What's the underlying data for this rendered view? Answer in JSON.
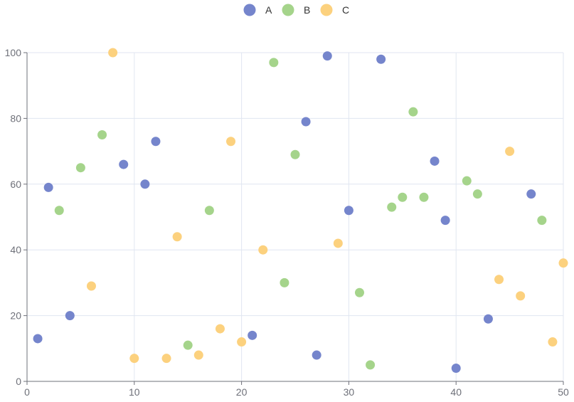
{
  "chart_data": {
    "type": "scatter",
    "title": "",
    "xlabel": "",
    "ylabel": "",
    "xlim": [
      0,
      50
    ],
    "ylim": [
      0,
      100
    ],
    "x_ticks": [
      "0",
      "10",
      "20",
      "30",
      "40",
      "50"
    ],
    "y_ticks": [
      "0",
      "20",
      "40",
      "60",
      "80",
      "100"
    ],
    "grid": true,
    "legend_position": "top-center",
    "series": [
      {
        "name": "A",
        "color": "#7585cc",
        "points": [
          [
            1,
            13
          ],
          [
            2,
            59
          ],
          [
            4,
            20
          ],
          [
            9,
            66
          ],
          [
            11,
            60
          ],
          [
            12,
            73
          ],
          [
            21,
            14
          ],
          [
            26,
            79
          ],
          [
            27,
            8
          ],
          [
            28,
            99
          ],
          [
            30,
            52
          ],
          [
            33,
            98
          ],
          [
            38,
            67
          ],
          [
            39,
            49
          ],
          [
            40,
            4
          ],
          [
            43,
            19
          ],
          [
            47,
            57
          ]
        ]
      },
      {
        "name": "B",
        "color": "#a5d48b",
        "points": [
          [
            3,
            52
          ],
          [
            5,
            65
          ],
          [
            7,
            75
          ],
          [
            15,
            11
          ],
          [
            17,
            52
          ],
          [
            23,
            97
          ],
          [
            24,
            30
          ],
          [
            25,
            69
          ],
          [
            31,
            27
          ],
          [
            32,
            5
          ],
          [
            34,
            53
          ],
          [
            35,
            56
          ],
          [
            36,
            82
          ],
          [
            37,
            56
          ],
          [
            41,
            61
          ],
          [
            42,
            57
          ],
          [
            48,
            49
          ]
        ]
      },
      {
        "name": "C",
        "color": "#fcd17e",
        "points": [
          [
            6,
            29
          ],
          [
            8,
            100
          ],
          [
            10,
            7
          ],
          [
            13,
            7
          ],
          [
            14,
            44
          ],
          [
            16,
            8
          ],
          [
            18,
            16
          ],
          [
            19,
            73
          ],
          [
            20,
            12
          ],
          [
            22,
            40
          ],
          [
            29,
            42
          ],
          [
            44,
            31
          ],
          [
            45,
            70
          ],
          [
            46,
            26
          ],
          [
            49,
            12
          ],
          [
            50,
            36
          ]
        ]
      }
    ]
  }
}
